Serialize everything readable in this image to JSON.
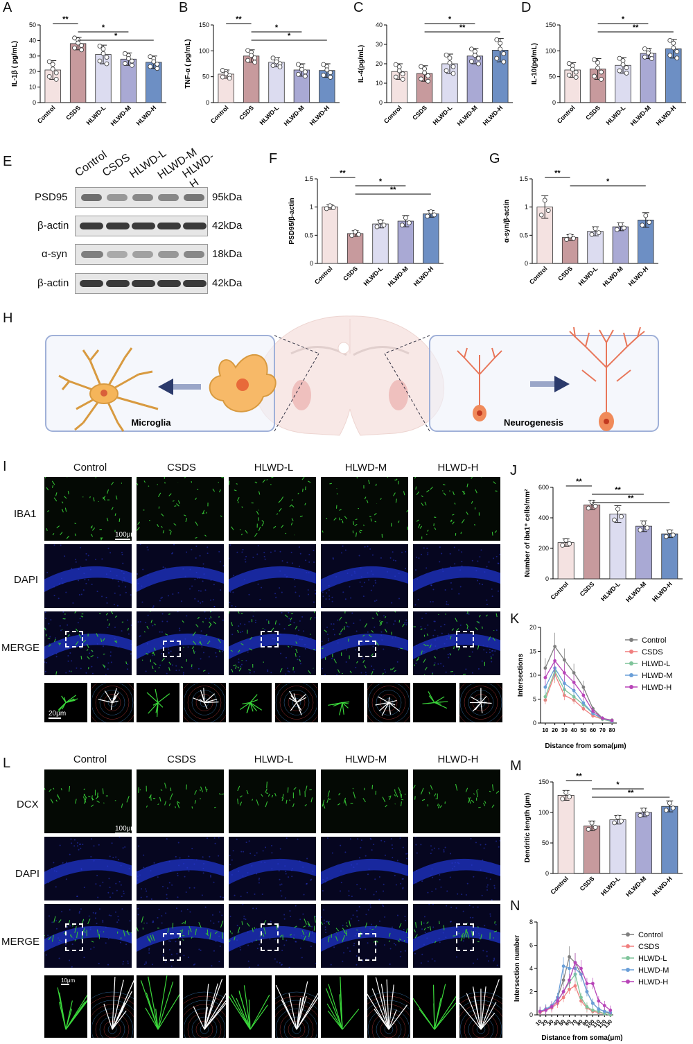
{
  "groups": [
    "Control",
    "CSDS",
    "HLWD-L",
    "HLWD-M",
    "HLWD-H"
  ],
  "group_colors": [
    "#f4e2e1",
    "#c79a9d",
    "#dcdcf0",
    "#a9a9d4",
    "#6d8fc4"
  ],
  "panel_letters": {
    "A": "A",
    "B": "B",
    "C": "C",
    "D": "D",
    "E": "E",
    "F": "F",
    "G": "G",
    "H": "H",
    "I": "I",
    "J": "J",
    "K": "K",
    "L": "L",
    "M": "M",
    "N": "N"
  },
  "sig": {
    "one": "*",
    "two": "**"
  },
  "western_blot": {
    "rows": [
      {
        "label": "PSD95",
        "kda": "95kDa"
      },
      {
        "label": "β-actin",
        "kda": "42kDa"
      },
      {
        "label": "α-syn",
        "kda": "18kDa"
      },
      {
        "label": "β-actin",
        "kda": "42kDa"
      }
    ]
  },
  "schematic": {
    "left_label": "Microglia",
    "right_label": "Neurogenesis"
  },
  "panel_I": {
    "rows": [
      "IBA1",
      "DAPI",
      "MERGE"
    ],
    "scale_main": "100μm",
    "scale_zoom": "20μm"
  },
  "panel_L": {
    "rows": [
      "DCX",
      "DAPI",
      "MERGE"
    ],
    "scale_main": "100μm",
    "scale_zoom": "10μm"
  },
  "chart_data": [
    {
      "id": "A",
      "type": "bar",
      "ylabel": "IL-1β ( pg/mL)",
      "ylim": [
        0,
        50
      ],
      "yticks": [
        0,
        10,
        20,
        30,
        40,
        50
      ],
      "categories": [
        "Control",
        "CSDS",
        "HLWD-L",
        "HLWD-M",
        "HLWD-H"
      ],
      "values": [
        21,
        38,
        31,
        28,
        26
      ],
      "errors": [
        6,
        4,
        6,
        4,
        4
      ],
      "sig": [
        {
          "from": 0,
          "to": 1,
          "label": "**"
        },
        {
          "from": 1,
          "to": 3,
          "label": "*"
        },
        {
          "from": 1,
          "to": 4,
          "label": "*"
        }
      ]
    },
    {
      "id": "B",
      "type": "bar",
      "ylabel": "TNF-α ( pg/mL)",
      "ylim": [
        0,
        150
      ],
      "yticks": [
        0,
        50,
        100,
        150
      ],
      "categories": [
        "Control",
        "CSDS",
        "HLWD-L",
        "HLWD-M",
        "HLWD-H"
      ],
      "values": [
        55,
        90,
        78,
        63,
        62
      ],
      "errors": [
        8,
        12,
        9,
        12,
        13
      ],
      "sig": [
        {
          "from": 0,
          "to": 1,
          "label": "**"
        },
        {
          "from": 1,
          "to": 3,
          "label": "*"
        },
        {
          "from": 1,
          "to": 4,
          "label": "*"
        }
      ]
    },
    {
      "id": "C",
      "type": "bar",
      "ylabel": "IL-4(pg/mL)",
      "ylim": [
        0,
        40
      ],
      "yticks": [
        0,
        10,
        20,
        30,
        40
      ],
      "categories": [
        "Control",
        "CSDS",
        "HLWD-L",
        "HLWD-M",
        "HLWD-H"
      ],
      "values": [
        16,
        15,
        20,
        24,
        27
      ],
      "errors": [
        4,
        4,
        5,
        4,
        6
      ],
      "sig": [
        {
          "from": 1,
          "to": 3,
          "label": "*"
        },
        {
          "from": 1,
          "to": 4,
          "label": "**"
        }
      ]
    },
    {
      "id": "D",
      "type": "bar",
      "ylabel": "IL-10(pg/mL)",
      "ylim": [
        0,
        150
      ],
      "yticks": [
        0,
        50,
        100,
        150
      ],
      "categories": [
        "Control",
        "CSDS",
        "HLWD-L",
        "HLWD-M",
        "HLWD-H"
      ],
      "values": [
        63,
        65,
        72,
        95,
        104
      ],
      "errors": [
        14,
        20,
        15,
        10,
        18
      ],
      "sig": [
        {
          "from": 1,
          "to": 3,
          "label": "*"
        },
        {
          "from": 1,
          "to": 4,
          "label": "**"
        }
      ]
    },
    {
      "id": "F",
      "type": "bar",
      "ylabel": "PSD95/β-actin",
      "ylim": [
        0,
        1.5
      ],
      "yticks": [
        0.0,
        0.5,
        1.0,
        1.5
      ],
      "categories": [
        "Control",
        "CSDS",
        "HLWD-L",
        "HLWD-M",
        "HLWD-H"
      ],
      "values": [
        1.0,
        0.53,
        0.7,
        0.75,
        0.88
      ],
      "errors": [
        0.04,
        0.05,
        0.07,
        0.1,
        0.06
      ],
      "sig": [
        {
          "from": 0,
          "to": 1,
          "label": "**"
        },
        {
          "from": 1,
          "to": 3,
          "label": "*"
        },
        {
          "from": 1,
          "to": 4,
          "label": "**"
        }
      ]
    },
    {
      "id": "G",
      "type": "bar",
      "ylabel": "α-syn/β-actin",
      "ylim": [
        0,
        1.5
      ],
      "yticks": [
        0.0,
        0.5,
        1.0,
        1.5
      ],
      "categories": [
        "Control",
        "CSDS",
        "HLWD-L",
        "HLWD-M",
        "HLWD-H"
      ],
      "values": [
        1.0,
        0.46,
        0.57,
        0.65,
        0.77
      ],
      "errors": [
        0.2,
        0.05,
        0.08,
        0.07,
        0.13
      ],
      "sig": [
        {
          "from": 0,
          "to": 1,
          "label": "**"
        },
        {
          "from": 1,
          "to": 4,
          "label": "*"
        }
      ]
    },
    {
      "id": "J",
      "type": "bar",
      "ylabel": "Number of iba1⁺ cells/mm²",
      "ylim": [
        0,
        600
      ],
      "yticks": [
        0,
        200,
        400,
        600
      ],
      "categories": [
        "Control",
        "CSDS",
        "HLWD-L",
        "HLWD-M",
        "HLWD-H"
      ],
      "values": [
        238,
        485,
        425,
        345,
        295
      ],
      "errors": [
        25,
        30,
        55,
        35,
        25
      ],
      "sig": [
        {
          "from": 0,
          "to": 1,
          "label": "**"
        },
        {
          "from": 1,
          "to": 3,
          "label": "**"
        },
        {
          "from": 1,
          "to": 4,
          "label": "**"
        }
      ]
    },
    {
      "id": "M",
      "type": "bar",
      "ylabel": "Dendritic length (μm)",
      "ylim": [
        0,
        150
      ],
      "yticks": [
        0,
        50,
        100,
        150
      ],
      "categories": [
        "Control",
        "CSDS",
        "HLWD-L",
        "HLWD-M",
        "HLWD-H"
      ],
      "values": [
        128,
        78,
        88,
        100,
        110
      ],
      "errors": [
        8,
        8,
        7,
        7,
        9
      ],
      "sig": [
        {
          "from": 0,
          "to": 1,
          "label": "**"
        },
        {
          "from": 1,
          "to": 3,
          "label": "*"
        },
        {
          "from": 1,
          "to": 4,
          "label": "**"
        }
      ]
    },
    {
      "id": "K",
      "type": "line",
      "xlabel": "Distance from soma(μm)",
      "ylabel": "Intersections",
      "x": [
        10,
        20,
        30,
        40,
        50,
        60,
        70,
        80
      ],
      "xlim": [
        5,
        85
      ],
      "ylim": [
        0,
        20
      ],
      "yticks": [
        0,
        5,
        10,
        15,
        20
      ],
      "series": [
        {
          "name": "Control",
          "color": "#7f7f7f",
          "marker": "circle",
          "values": [
            11.5,
            16,
            13.2,
            10.5,
            7.5,
            3,
            1,
            0.6
          ]
        },
        {
          "name": "CSDS",
          "color": "#f07f7f",
          "marker": "square",
          "values": [
            4.8,
            10.2,
            5.8,
            4.8,
            3,
            1.5,
            0.8,
            0.3
          ]
        },
        {
          "name": "HLWD-L",
          "color": "#7fc49a",
          "marker": "triangle",
          "values": [
            5.5,
            10.8,
            7,
            5.5,
            3.8,
            2,
            0.8,
            0.3
          ]
        },
        {
          "name": "HLWD-M",
          "color": "#6a9fd8",
          "marker": "tri-down",
          "values": [
            7.5,
            11.5,
            8.3,
            6.8,
            4.2,
            2,
            1,
            0.4
          ]
        },
        {
          "name": "HLWD-H",
          "color": "#b844b8",
          "marker": "diamond",
          "values": [
            9.5,
            13,
            10.5,
            8.5,
            5.8,
            2.5,
            1,
            0.5
          ]
        }
      ]
    },
    {
      "id": "N",
      "type": "line",
      "xlabel": "Distance from soma(μm)",
      "ylabel": "Intersection number",
      "x": [
        10,
        20,
        30,
        40,
        50,
        60,
        70,
        80,
        90,
        100,
        110,
        120,
        130
      ],
      "xlim": [
        5,
        135
      ],
      "ylim": [
        0,
        8
      ],
      "yticks": [
        0,
        2,
        4,
        6,
        8
      ],
      "series": [
        {
          "name": "Control",
          "color": "#7f7f7f",
          "marker": "circle",
          "values": [
            0.3,
            0.5,
            0.8,
            1.5,
            3,
            5,
            4.5,
            3.5,
            2,
            1,
            0.5,
            0.3,
            0.1
          ]
        },
        {
          "name": "CSDS",
          "color": "#f07f7f",
          "marker": "square",
          "values": [
            0.2,
            0.4,
            0.6,
            1,
            1.5,
            2.2,
            2.5,
            1.2,
            0.6,
            0.3,
            0.2,
            0.1,
            0.0
          ]
        },
        {
          "name": "HLWD-L",
          "color": "#7fc49a",
          "marker": "triangle",
          "values": [
            0.3,
            0.5,
            0.7,
            1.2,
            2,
            2.8,
            3.5,
            1.5,
            0.7,
            0.4,
            0.3,
            0.1,
            0.0
          ]
        },
        {
          "name": "HLWD-M",
          "color": "#6a9fd8",
          "marker": "tri-down",
          "values": [
            0.3,
            0.5,
            0.8,
            1.5,
            4.2,
            4,
            4,
            3.5,
            2,
            1,
            0.5,
            0.3,
            0.2
          ]
        },
        {
          "name": "HLWD-H",
          "color": "#b844b8",
          "marker": "diamond",
          "values": [
            0.3,
            0.4,
            0.7,
            1.2,
            2,
            3,
            4.5,
            4,
            2.7,
            2.7,
            1.2,
            0.8,
            0.4
          ]
        }
      ]
    }
  ]
}
